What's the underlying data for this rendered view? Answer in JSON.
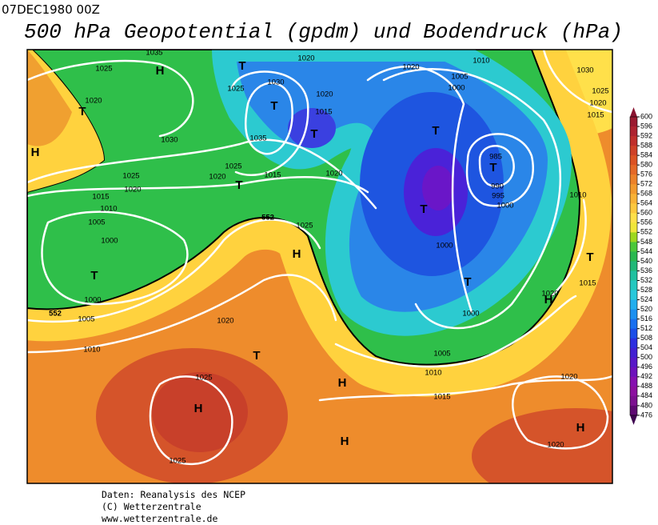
{
  "header": {
    "date": "07DEC1980 00Z",
    "title": "500 hPa Geopotential (gpdm) und Bodendruck (hPa)"
  },
  "map": {
    "isobar_labels": [
      1035,
      1025,
      1020,
      1030,
      1025,
      1020,
      1015,
      1010,
      1005,
      1000,
      1000,
      1005,
      1010,
      1020,
      1025,
      1030,
      1035,
      1025,
      1020,
      1015,
      1020,
      1025,
      1020,
      1015,
      1020,
      1010,
      1005,
      1000,
      1030,
      1025,
      1020,
      1015,
      985,
      990,
      995,
      1000,
      1010,
      1000,
      1000,
      1020,
      1015,
      1005,
      1010,
      1015,
      1020,
      1025,
      1025,
      1020,
      1020
    ],
    "height_labels": [
      552,
      552
    ],
    "pressure_centers": [
      "H",
      "T",
      "T",
      "H",
      "T",
      "T",
      "T",
      "T",
      "T",
      "T",
      "T",
      "H",
      "T",
      "T",
      "H",
      "T",
      "H",
      "H",
      "H",
      "H"
    ]
  },
  "colorbar": {
    "labels": [
      600,
      596,
      592,
      588,
      584,
      580,
      576,
      572,
      568,
      564,
      560,
      556,
      552,
      548,
      544,
      540,
      536,
      532,
      528,
      524,
      520,
      516,
      512,
      508,
      504,
      500,
      496,
      492,
      488,
      484,
      480,
      476
    ]
  },
  "footer": {
    "lines": [
      "Daten: Reanalysis des NCEP",
      "(C) Wetterzentrale",
      "www.wetterzentrale.de"
    ]
  }
}
